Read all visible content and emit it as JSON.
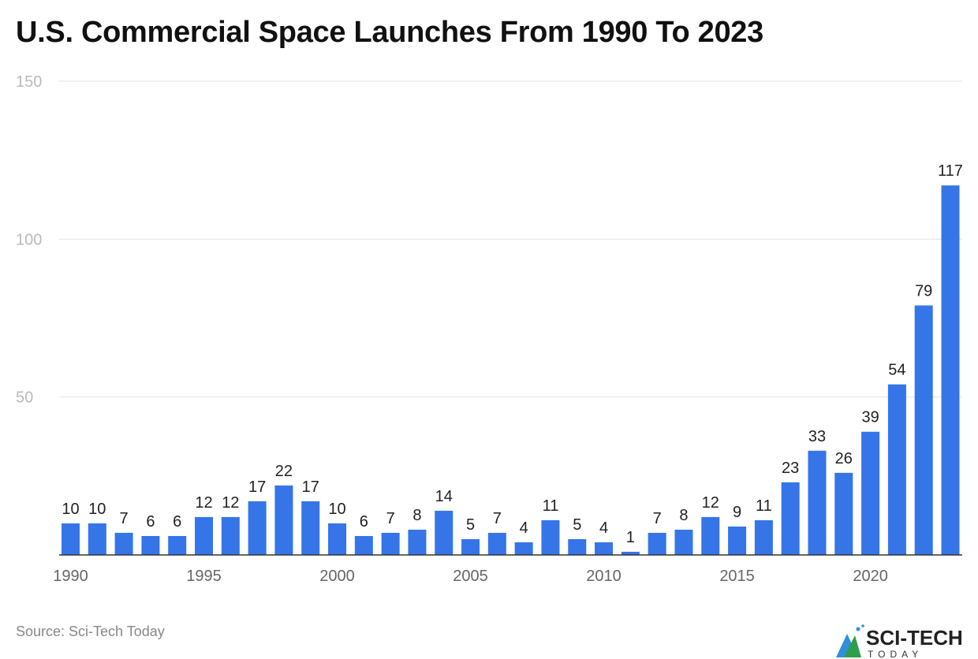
{
  "chart_data": {
    "type": "bar",
    "title": "U.S. Commercial Space Launches From 1990 To 2023",
    "categories": [
      1990,
      1991,
      1992,
      1993,
      1994,
      1995,
      1996,
      1997,
      1998,
      1999,
      2000,
      2001,
      2002,
      2003,
      2004,
      2005,
      2006,
      2007,
      2008,
      2009,
      2010,
      2011,
      2012,
      2013,
      2014,
      2015,
      2016,
      2017,
      2018,
      2019,
      2020,
      2021,
      2022,
      2023
    ],
    "values": [
      10,
      10,
      7,
      6,
      6,
      12,
      12,
      17,
      22,
      17,
      10,
      6,
      7,
      8,
      14,
      5,
      7,
      4,
      11,
      5,
      4,
      1,
      7,
      8,
      12,
      9,
      11,
      23,
      33,
      26,
      39,
      54,
      79,
      117
    ],
    "x_tick_labels": [
      "1990",
      "1995",
      "2000",
      "2005",
      "2010",
      "2015",
      "2020"
    ],
    "y_tick_labels": [
      "50",
      "100",
      "150"
    ],
    "ylim": [
      0,
      150
    ],
    "grid": true,
    "bar_color": "#3575e8",
    "data_labels": true
  },
  "source": "Source: Sci-Tech Today",
  "logo": {
    "text": "SCI-TECH",
    "subtext": "TODAY"
  }
}
